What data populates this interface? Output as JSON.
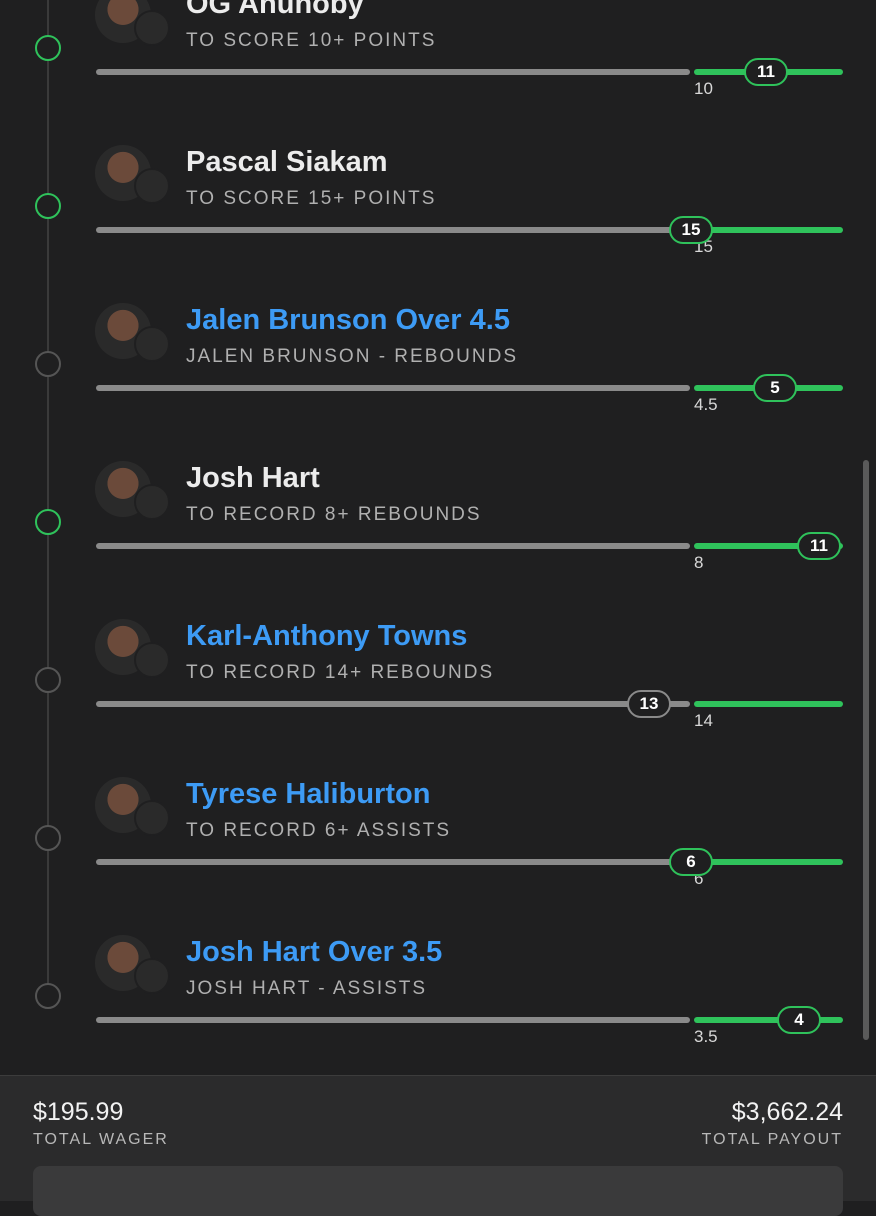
{
  "legs": [
    {
      "title": "OG Anunoby",
      "subtitle": "TO SCORE 10+ POINTS",
      "current": "11",
      "threshold": "10"
    },
    {
      "title": "Pascal Siakam",
      "subtitle": "TO SCORE 15+ POINTS",
      "current": "15",
      "threshold": "15"
    },
    {
      "title": "Jalen Brunson Over 4.5",
      "subtitle": "JALEN BRUNSON - REBOUNDS",
      "current": "5",
      "threshold": "4.5"
    },
    {
      "title": "Josh Hart",
      "subtitle": "TO RECORD 8+ REBOUNDS",
      "current": "11",
      "threshold": "8"
    },
    {
      "title": "Karl-Anthony Towns",
      "subtitle": "TO RECORD 14+ REBOUNDS",
      "current": "13",
      "threshold": "14"
    },
    {
      "title": "Tyrese Haliburton",
      "subtitle": "TO RECORD 6+ ASSISTS",
      "current": "6",
      "threshold": "6"
    },
    {
      "title": "Josh Hart Over 3.5",
      "subtitle": "JOSH HART - ASSISTS",
      "current": "4",
      "threshold": "3.5"
    }
  ],
  "footer": {
    "wager": "$195.99",
    "wager_label": "TOTAL WAGER",
    "payout": "$3,662.24",
    "payout_label": "TOTAL PAYOUT"
  }
}
